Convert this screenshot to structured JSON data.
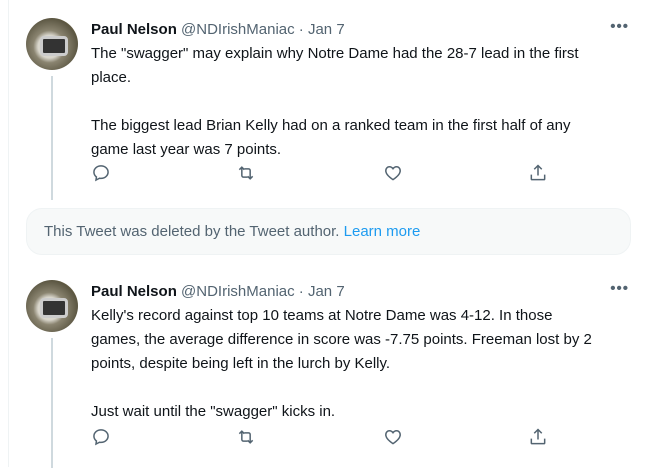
{
  "tweets": [
    {
      "name": "Paul Nelson",
      "handle": "@NDIrishManiac",
      "sep": "·",
      "date": "Jan 7",
      "text": "The \"swagger\" may explain why Notre Dame had the 28-7 lead in the first\nplace.\n\nThe biggest lead Brian Kelly had on a ranked team in the first half of any\ngame last year was 7 points."
    },
    {
      "name": "Paul Nelson",
      "handle": "@NDIrishManiac",
      "sep": "·",
      "date": "Jan 7",
      "text": "Kelly's record against top 10 teams at Notre Dame was 4-12. In those\ngames, the average difference in score was -7.75 points. Freeman lost by 2\npoints, despite being left in the lurch by Kelly.\n\nJust wait until the \"swagger\" kicks in."
    }
  ],
  "deleted": {
    "text": "This Tweet was deleted by the Tweet author.",
    "link": "Learn more"
  },
  "icons": {
    "more": "more-icon",
    "reply": "reply-icon",
    "retweet": "retweet-icon",
    "like": "like-icon",
    "share": "share-icon"
  },
  "colors": {
    "link": "#1d9bf0",
    "muted": "#536471",
    "thread": "#cfd9de"
  }
}
